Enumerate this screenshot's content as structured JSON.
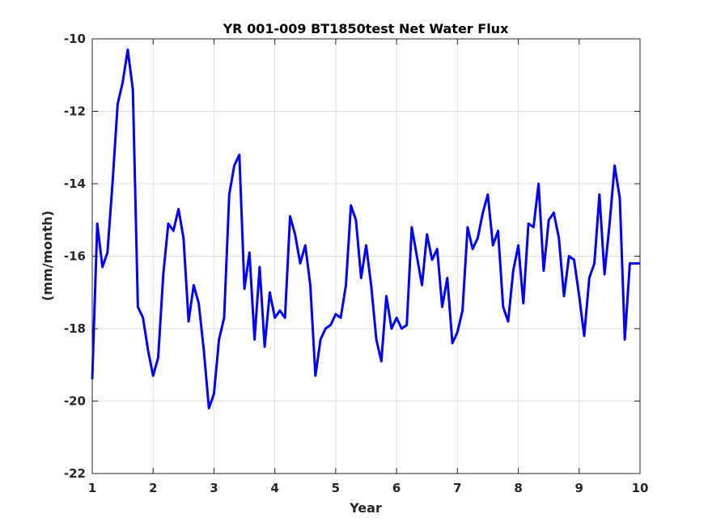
{
  "chart_data": {
    "type": "line",
    "title": "YR 001-009 BT1850test Net Water Flux",
    "xlabel": "Year",
    "ylabel": "(mm/month)",
    "xlim": [
      1,
      10
    ],
    "ylim": [
      -22,
      -10
    ],
    "xticks": [
      "1",
      "2",
      "3",
      "4",
      "5",
      "6",
      "7",
      "8",
      "9",
      "10"
    ],
    "yticks": [
      "-22",
      "-20",
      "-18",
      "-16",
      "-14",
      "-12",
      "-10"
    ],
    "grid": true,
    "line_color": "#0000ff",
    "series": [
      {
        "x": [
          1.0,
          1.083,
          1.167,
          1.25,
          1.333,
          1.417,
          1.5,
          1.583,
          1.667,
          1.75,
          1.833,
          1.917,
          2.0,
          2.083,
          2.167,
          2.25,
          2.333,
          2.417,
          2.5,
          2.583,
          2.667,
          2.75,
          2.833,
          2.917,
          3.0,
          3.083,
          3.167,
          3.25,
          3.333,
          3.417,
          3.5,
          3.583,
          3.667,
          3.75,
          3.833,
          3.917,
          4.0,
          4.083,
          4.167,
          4.25,
          4.333,
          4.417,
          4.5,
          4.583,
          4.667,
          4.75,
          4.833,
          4.917,
          5.0,
          5.083,
          5.167,
          5.25,
          5.333,
          5.417,
          5.5,
          5.583,
          5.667,
          5.75,
          5.833,
          5.917,
          6.0,
          6.083,
          6.167,
          6.25,
          6.333,
          6.417,
          6.5,
          6.583,
          6.667,
          6.75,
          6.833,
          6.917,
          7.0,
          7.083,
          7.167,
          7.25,
          7.333,
          7.417,
          7.5,
          7.583,
          7.667,
          7.75,
          7.833,
          7.917,
          8.0,
          8.083,
          8.167,
          8.25,
          8.333,
          8.417,
          8.5,
          8.583,
          8.667,
          8.75,
          8.833,
          8.917,
          9.0,
          9.083,
          9.167,
          9.25,
          9.333,
          9.417,
          9.5,
          9.583,
          9.667,
          9.75,
          9.833,
          9.917,
          10.0
        ],
        "y": [
          -19.4,
          -15.1,
          -16.3,
          -15.9,
          -14.0,
          -11.8,
          -11.2,
          -10.3,
          -11.4,
          -17.4,
          -17.7,
          -18.6,
          -19.3,
          -18.8,
          -16.5,
          -15.1,
          -15.3,
          -14.7,
          -15.5,
          -17.8,
          -16.8,
          -17.3,
          -18.6,
          -20.2,
          -19.8,
          -18.3,
          -17.7,
          -14.3,
          -13.5,
          -13.2,
          -16.9,
          -15.9,
          -18.3,
          -16.3,
          -18.5,
          -17.0,
          -17.7,
          -17.5,
          -17.7,
          -14.9,
          -15.4,
          -16.2,
          -15.7,
          -16.8,
          -19.3,
          -18.3,
          -18.0,
          -17.9,
          -17.6,
          -17.7,
          -16.8,
          -14.6,
          -15.0,
          -16.6,
          -15.7,
          -16.8,
          -18.3,
          -18.9,
          -17.1,
          -18.0,
          -17.7,
          -18.0,
          -17.9,
          -15.2,
          -16.0,
          -16.8,
          -15.4,
          -16.1,
          -15.8,
          -17.4,
          -16.6,
          -18.4,
          -18.1,
          -17.5,
          -15.2,
          -15.8,
          -15.5,
          -14.8,
          -14.3,
          -15.7,
          -15.3,
          -17.4,
          -17.8,
          -16.4,
          -15.7,
          -17.3,
          -15.1,
          -15.2,
          -14.0,
          -16.4,
          -15.0,
          -14.8,
          -15.5,
          -17.1,
          -16.0,
          -16.1,
          -17.1,
          -18.2,
          -16.6,
          -16.2,
          -14.3,
          -16.5,
          -15.1,
          -13.5,
          -14.4,
          -18.3,
          -16.2,
          -16.2,
          -16.2
        ]
      }
    ]
  }
}
